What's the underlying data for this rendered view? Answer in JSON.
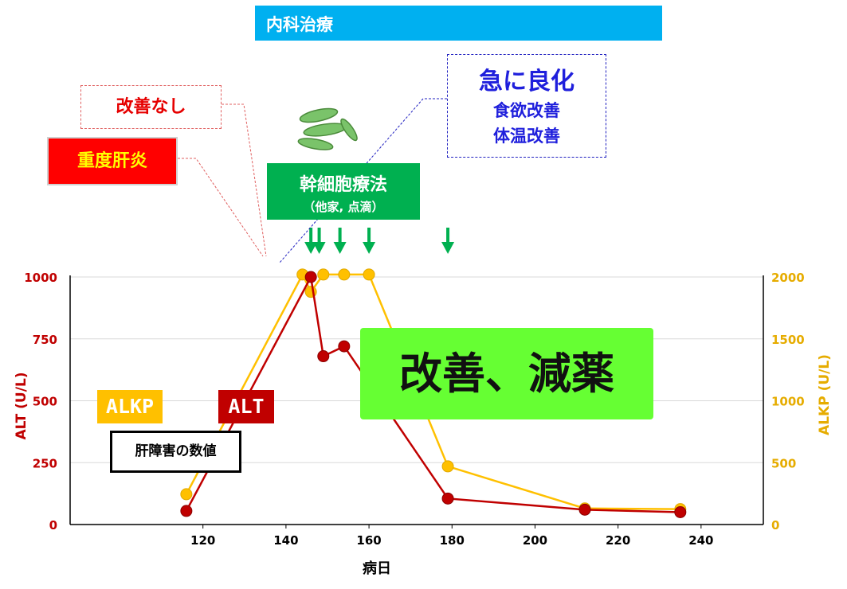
{
  "banner": {
    "title": "内科治療"
  },
  "callouts": {
    "no_improvement": "改善なし",
    "severe_hepatitis": "重度肝炎",
    "stem_cell_title": "幹細胞療法",
    "stem_cell_sub": "（他家, 点滴）",
    "rapid_title": "急に良化",
    "rapid_line1": "食欲改善",
    "rapid_line2": "体温改善",
    "improvement_big": "改善、減薬",
    "liver_values": "肝障害の数値"
  },
  "legend_tags": {
    "alkp": "ALKP",
    "alt": "ALT"
  },
  "colors": {
    "alt": "#c00000",
    "alkp": "#ffc000",
    "stemcell": "#00b050",
    "banner": "#00b0f0",
    "improve": "#66ff33"
  },
  "chart_data": {
    "type": "line",
    "xlabel": "病日",
    "ylabel": "ALT (U/L)",
    "y2label": "ALKP (U/L)",
    "xlim": [
      88,
      255
    ],
    "ylim": [
      0,
      1000
    ],
    "y2lim": [
      0,
      2000
    ],
    "xticks": [
      120,
      140,
      160,
      180,
      200,
      220,
      240
    ],
    "yticks": [
      0,
      250,
      500,
      750,
      1000
    ],
    "y2ticks": [
      0,
      500,
      1000,
      1500,
      2000
    ],
    "grid": "horizontal",
    "series": [
      {
        "name": "ALT",
        "axis": "left",
        "color": "#c00000",
        "x": [
          116,
          146,
          149,
          154,
          179,
          212,
          235
        ],
        "y": [
          55,
          1000,
          680,
          720,
          105,
          60,
          50
        ]
      },
      {
        "name": "ALKP",
        "axis": "right",
        "color": "#ffc000",
        "x": [
          116,
          144,
          146,
          149,
          154,
          160,
          179,
          212,
          235
        ],
        "y": [
          245,
          2020,
          1880,
          2020,
          2020,
          2020,
          470,
          130,
          125
        ]
      }
    ],
    "treatment_days": [
      146,
      148,
      153,
      160,
      179
    ]
  }
}
